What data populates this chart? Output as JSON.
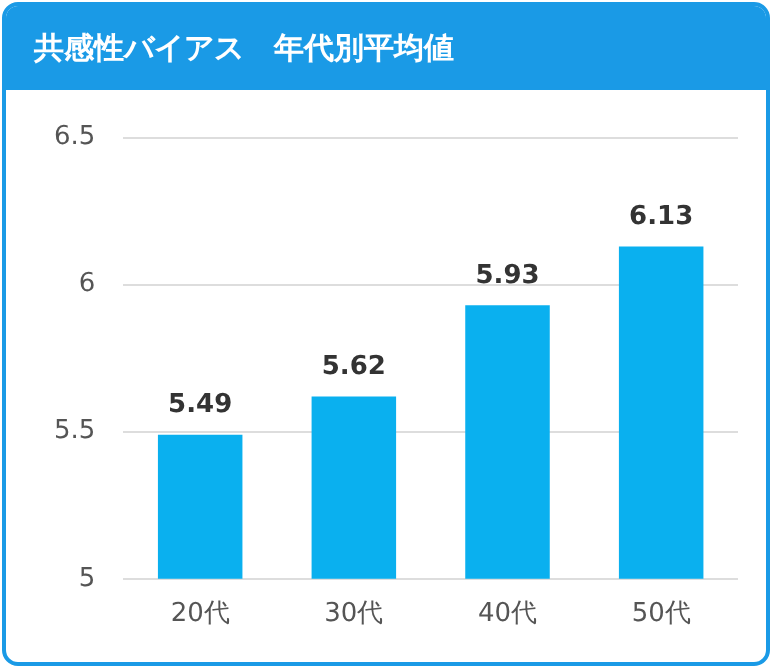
{
  "chart_data": {
    "type": "bar",
    "title": "共感性バイアス　年代別平均値",
    "categories": [
      "20代",
      "30代",
      "40代",
      "50代"
    ],
    "values": [
      5.49,
      5.62,
      5.93,
      6.13
    ],
    "color": "#0ab0ef",
    "ylim": [
      5,
      6.5
    ],
    "yticks": [
      5,
      5.5,
      6,
      6.5
    ],
    "grid": "y",
    "data_labels": true
  }
}
